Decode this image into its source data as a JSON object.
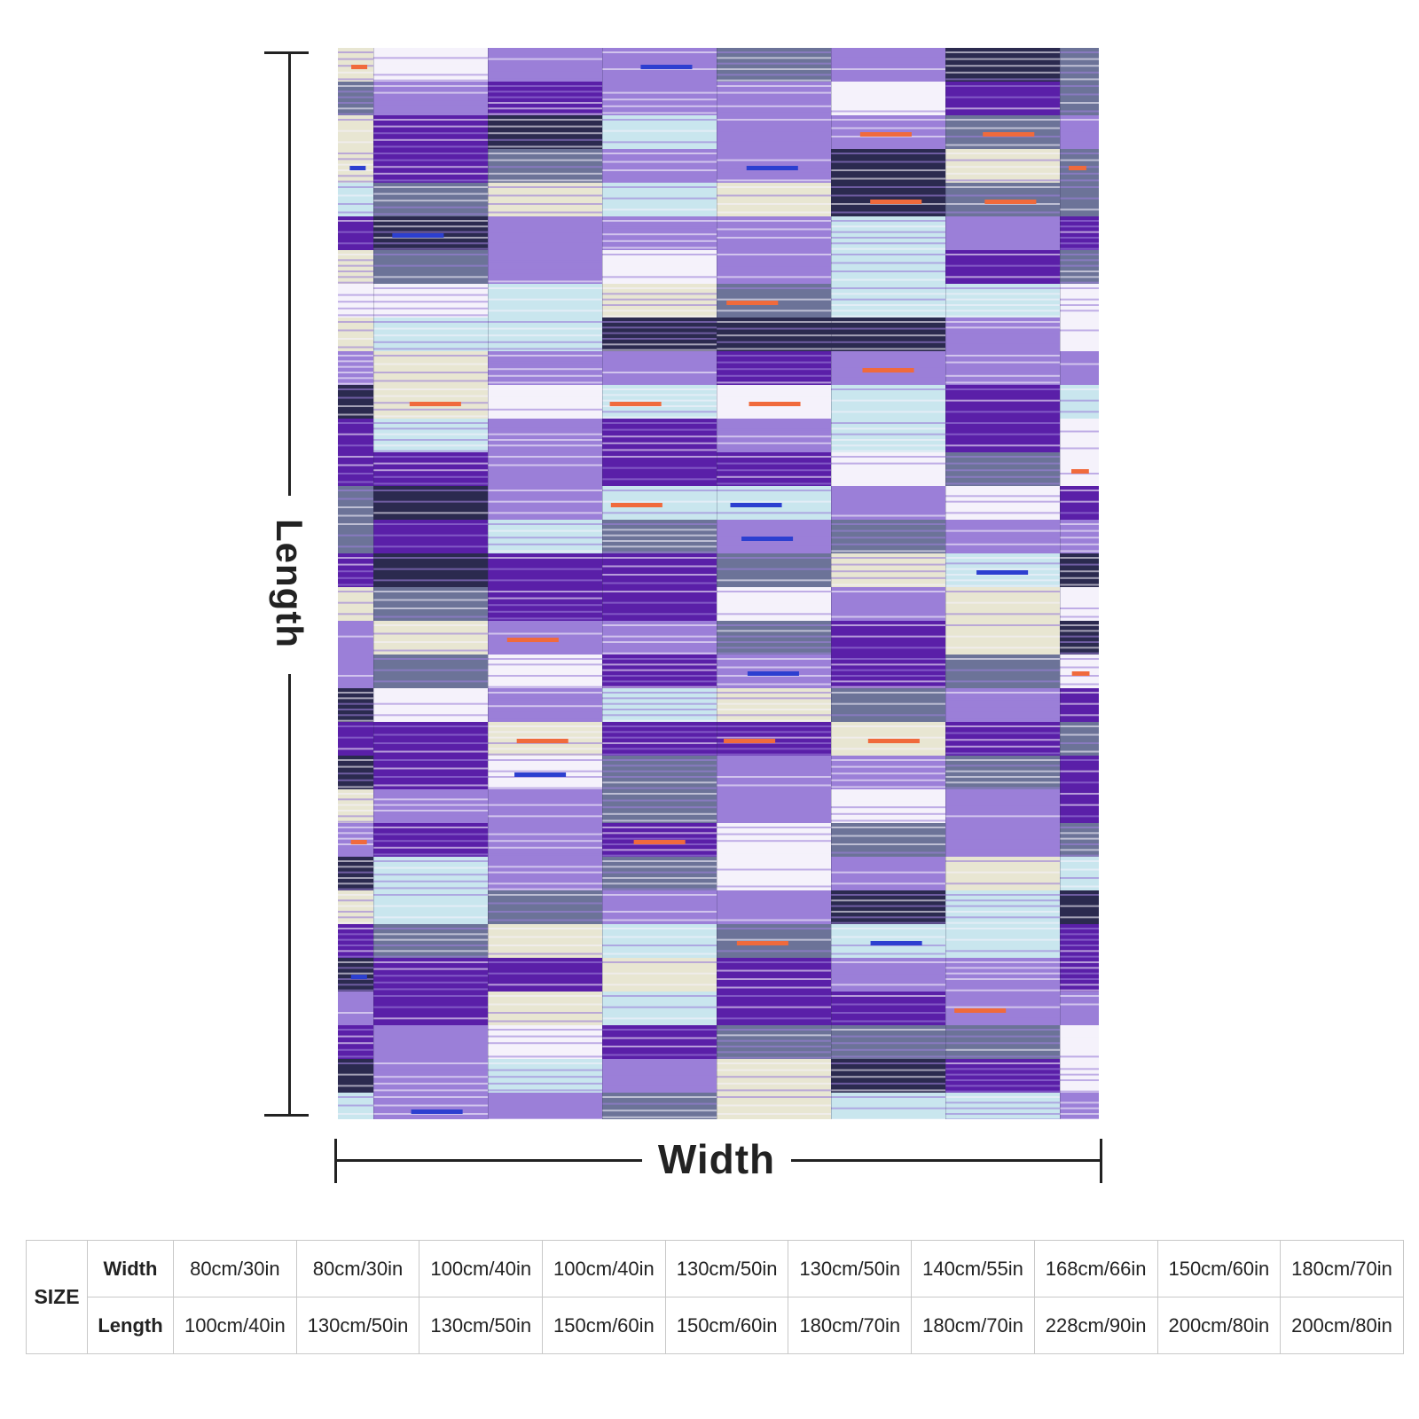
{
  "labels": {
    "length": "Length",
    "width": "Width"
  },
  "table": {
    "size_label": "SIZE",
    "width_label": "Width",
    "length_label": "Length",
    "widths": [
      "80cm/30in",
      "80cm/30in",
      "100cm/40in",
      "100cm/40in",
      "130cm/50in",
      "130cm/50in",
      "140cm/55in",
      "168cm/66in",
      "150cm/60in",
      "180cm/70in"
    ],
    "lengths": [
      "100cm/40in",
      "130cm/50in",
      "130cm/50in",
      "150cm/60in",
      "150cm/60in",
      "180cm/70in",
      "180cm/70in",
      "228cm/90in",
      "200cm/80in",
      "200cm/80in"
    ]
  },
  "colors": {
    "purple": "#5a1fa8",
    "lavender": "#9b7fd8",
    "slate": "#6c7398",
    "navy": "#2b2a4f",
    "cream": "#e8e6d2",
    "ice": "#c9e6ee",
    "orange": "#f06a3c",
    "blue": "#2c3fd0",
    "white": "#f5f2fb"
  }
}
